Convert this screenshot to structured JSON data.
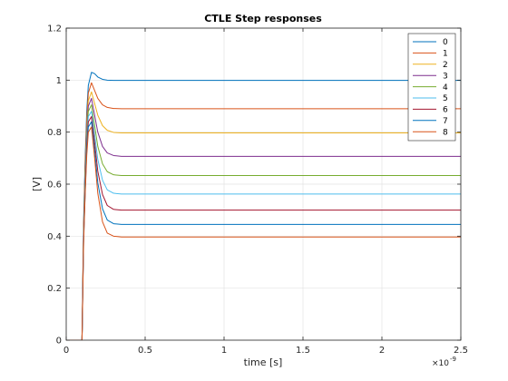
{
  "chart_data": {
    "type": "line",
    "title": "CTLE Step responses",
    "xlabel": "time [s]",
    "ylabel": "[V]",
    "x_exponent_label": "×10",
    "x_exponent_power": "-9",
    "xlim": [
      0,
      2.5
    ],
    "ylim": [
      0,
      1.2
    ],
    "x_ticks": [
      0,
      0.5,
      1,
      1.5,
      2,
      2.5
    ],
    "x_tick_labels": [
      "0",
      "0.5",
      "1",
      "1.5",
      "2",
      "2.5"
    ],
    "y_ticks": [
      0,
      0.2,
      0.4,
      0.6,
      0.8,
      1,
      1.2
    ],
    "y_tick_labels": [
      "0",
      "0.2",
      "0.4",
      "0.6",
      "0.8",
      "1",
      "1.2"
    ],
    "grid": true,
    "legend_position": "top-right",
    "x_unit_scale": "1e-9",
    "series": [
      {
        "name": "0",
        "color": "#0072BD",
        "x": [
          0,
          0.1,
          0.11,
          0.12,
          0.13,
          0.14,
          0.16,
          0.18,
          0.2,
          0.23,
          0.26,
          0.3,
          0.35,
          2.5
        ],
        "values": [
          0,
          0,
          0.45,
          0.7,
          0.88,
          0.98,
          1.03,
          1.025,
          1.012,
          1.003,
          1.0,
          0.999,
          0.999,
          0.999
        ]
      },
      {
        "name": "1",
        "color": "#D95319",
        "x": [
          0,
          0.1,
          0.11,
          0.12,
          0.13,
          0.14,
          0.16,
          0.18,
          0.2,
          0.23,
          0.26,
          0.3,
          0.35,
          2.5
        ],
        "values": [
          0,
          0,
          0.44,
          0.68,
          0.85,
          0.95,
          0.99,
          0.96,
          0.93,
          0.905,
          0.895,
          0.891,
          0.89,
          0.89
        ]
      },
      {
        "name": "2",
        "color": "#EDB120",
        "x": [
          0,
          0.1,
          0.11,
          0.12,
          0.13,
          0.14,
          0.16,
          0.18,
          0.2,
          0.23,
          0.26,
          0.3,
          0.35,
          2.5
        ],
        "values": [
          0,
          0,
          0.43,
          0.66,
          0.83,
          0.92,
          0.955,
          0.91,
          0.865,
          0.825,
          0.807,
          0.799,
          0.797,
          0.797
        ]
      },
      {
        "name": "3",
        "color": "#7E2F8E",
        "x": [
          0,
          0.1,
          0.11,
          0.12,
          0.13,
          0.14,
          0.16,
          0.18,
          0.2,
          0.23,
          0.26,
          0.3,
          0.35,
          2.5
        ],
        "values": [
          0,
          0,
          0.42,
          0.64,
          0.81,
          0.9,
          0.93,
          0.865,
          0.8,
          0.745,
          0.72,
          0.71,
          0.707,
          0.707
        ]
      },
      {
        "name": "4",
        "color": "#77AC30",
        "x": [
          0,
          0.1,
          0.11,
          0.12,
          0.13,
          0.14,
          0.16,
          0.18,
          0.2,
          0.23,
          0.26,
          0.3,
          0.35,
          2.5
        ],
        "values": [
          0,
          0,
          0.41,
          0.62,
          0.79,
          0.88,
          0.905,
          0.825,
          0.745,
          0.678,
          0.648,
          0.636,
          0.633,
          0.633
        ]
      },
      {
        "name": "5",
        "color": "#4DBEEE",
        "x": [
          0,
          0.1,
          0.11,
          0.12,
          0.13,
          0.14,
          0.16,
          0.18,
          0.2,
          0.23,
          0.26,
          0.3,
          0.35,
          2.5
        ],
        "values": [
          0,
          0,
          0.4,
          0.6,
          0.77,
          0.86,
          0.88,
          0.79,
          0.695,
          0.615,
          0.578,
          0.565,
          0.562,
          0.562
        ]
      },
      {
        "name": "6",
        "color": "#A2142F",
        "x": [
          0,
          0.1,
          0.11,
          0.12,
          0.13,
          0.14,
          0.16,
          0.18,
          0.2,
          0.23,
          0.26,
          0.3,
          0.35,
          2.5
        ],
        "values": [
          0,
          0,
          0.39,
          0.58,
          0.75,
          0.84,
          0.86,
          0.76,
          0.65,
          0.56,
          0.518,
          0.503,
          0.5,
          0.5
        ]
      },
      {
        "name": "7",
        "color": "#0072BD",
        "x": [
          0,
          0.1,
          0.11,
          0.12,
          0.13,
          0.14,
          0.16,
          0.18,
          0.2,
          0.23,
          0.26,
          0.3,
          0.35,
          2.5
        ],
        "values": [
          0,
          0,
          0.38,
          0.57,
          0.73,
          0.82,
          0.84,
          0.73,
          0.605,
          0.505,
          0.462,
          0.448,
          0.445,
          0.445
        ]
      },
      {
        "name": "8",
        "color": "#D95319",
        "x": [
          0,
          0.1,
          0.11,
          0.12,
          0.13,
          0.14,
          0.16,
          0.18,
          0.2,
          0.23,
          0.26,
          0.3,
          0.35,
          2.5
        ],
        "values": [
          0,
          0,
          0.37,
          0.56,
          0.71,
          0.8,
          0.82,
          0.7,
          0.565,
          0.455,
          0.412,
          0.4,
          0.397,
          0.397
        ]
      }
    ]
  }
}
